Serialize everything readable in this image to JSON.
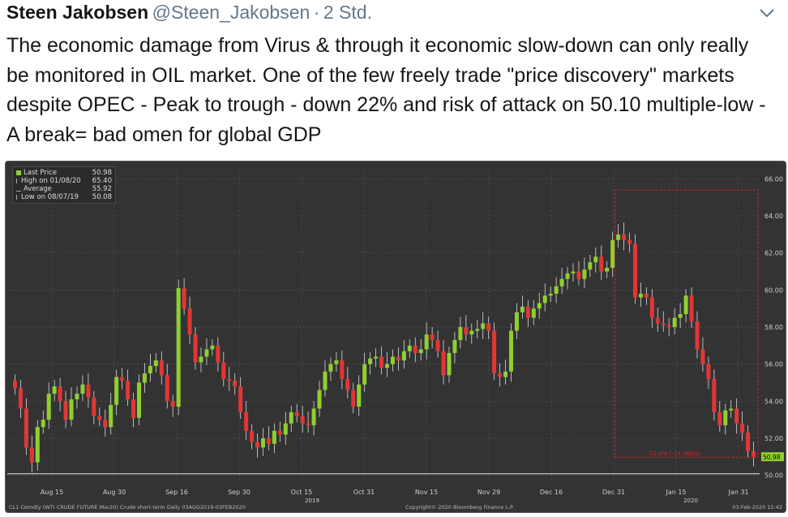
{
  "tweet": {
    "author_name": "Steen Jakobsen",
    "handle": "@Steen_Jakobsen",
    "separator": "·",
    "time": "2 Std.",
    "text": "The economic damage from Virus & through it economic slow-down can only really be monitored in OIL market. One of the few freely trade \"price discovery\" markets despite OPEC - Peak to trough - down 22% and risk of attack on 50.10 multiple-low - A break= bad omen for global GDP",
    "menu_icon": "chevron-down-icon"
  },
  "chart_data": {
    "type": "candlestick",
    "legend": [
      {
        "label": "Last Price",
        "value": "50.98"
      },
      {
        "label": "High on 01/08/20",
        "value": "65.40"
      },
      {
        "label": "Average",
        "value": "55.92"
      },
      {
        "label": "Low on 08/07/19",
        "value": "50.08"
      }
    ],
    "y_ticks": [
      "66.00",
      "64.00",
      "62.00",
      "60.00",
      "58.00",
      "56.00",
      "54.00",
      "52.00",
      "50.00"
    ],
    "ylim": [
      49.5,
      66.5
    ],
    "x_labels": [
      "Aug 15",
      "Aug 30",
      "Sep 16",
      "Sep 30",
      "Oct 15",
      "Oct 31",
      "Nov 15",
      "Nov 29",
      "Dec 16",
      "Dec 31",
      "Jan 15",
      "Jan 31"
    ],
    "year_labels": [
      "2019",
      "2020"
    ],
    "last_price_tag": "50.98",
    "drawdown_label": "-22.0% (-14.38pts)",
    "high": 65.4,
    "low_line": 50.08,
    "footer_left": "CL1 Comdty (WTI CRUDE FUTURE  Mar20) Crude short-term  Daily 03AUG2019-03FEB2020",
    "footer_center": "Copyright© 2020 Bloomberg Finance L.P.",
    "footer_right": "03-Feb-2020 15:42",
    "closes": [
      54.7,
      53.6,
      51.5,
      50.7,
      52.6,
      53.0,
      54.4,
      54.8,
      54.0,
      53.0,
      54.1,
      54.4,
      54.9,
      54.2,
      53.2,
      53.0,
      52.6,
      53.8,
      55.3,
      55.1,
      54.1,
      53.1,
      55.0,
      55.5,
      55.9,
      56.2,
      55.4,
      54.0,
      53.7,
      60.1,
      59.0,
      57.6,
      56.1,
      56.4,
      56.8,
      57.0,
      56.1,
      55.2,
      55.1,
      54.8,
      53.4,
      52.4,
      51.8,
      51.5,
      52.0,
      51.7,
      52.4,
      52.2,
      52.8,
      53.4,
      53.2,
      52.8,
      52.7,
      53.6,
      54.6,
      55.6,
      56.0,
      56.2,
      55.2,
      54.6,
      53.7,
      54.9,
      56.0,
      56.3,
      56.4,
      55.8,
      56.0,
      56.4,
      56.2,
      56.7,
      57.0,
      56.6,
      56.8,
      57.6,
      57.3,
      56.7,
      55.4,
      56.6,
      57.3,
      58.0,
      57.6,
      57.8,
      57.9,
      58.2,
      57.8,
      55.5,
      55.3,
      55.6,
      57.8,
      58.8,
      59.1,
      58.5,
      59.0,
      59.3,
      59.7,
      59.8,
      60.2,
      60.6,
      60.9,
      61.0,
      60.6,
      61.1,
      61.5,
      61.8,
      61.0,
      61.2,
      62.7,
      63.0,
      62.7,
      62.5,
      59.6,
      59.8,
      59.6,
      58.5,
      58.2,
      58.1,
      58.0,
      58.5,
      58.7,
      59.7,
      58.3,
      56.8,
      56.0,
      55.2,
      53.4,
      52.7,
      53.5,
      53.6,
      52.8,
      52.3,
      51.3,
      50.98
    ],
    "timestamps_note": "daily candles Aug 2019 - Feb 2020"
  },
  "colors": {
    "up": "#8fcf2f",
    "down": "#e23636",
    "background": "#333333",
    "grid": "#555555",
    "accent_red": "#d8222a"
  }
}
